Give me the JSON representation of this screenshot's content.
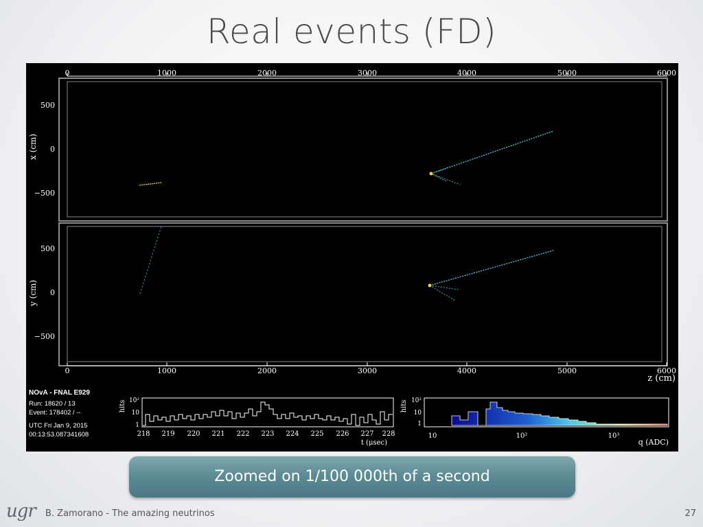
{
  "slide": {
    "title": "Real events (FD)",
    "caption": "Zoomed on 1/100 000th of a second",
    "author": "B. Zamorano - The amazing neutrinos",
    "page": "27",
    "logo": "ugr"
  },
  "event_display": {
    "z_axis_ticks": [
      "0",
      "1000",
      "2000",
      "3000",
      "4000",
      "5000",
      "6000"
    ],
    "z_axis_label": "z (cm)",
    "x_view": {
      "ylabel": "x (cm)",
      "ticks": [
        "500",
        "0",
        "−500"
      ]
    },
    "y_view": {
      "ylabel": "y (cm)",
      "ticks": [
        "500",
        "0",
        "−500"
      ]
    },
    "info": {
      "header": "NOvA - FNAL E929",
      "run": "Run:   18620 / 13",
      "event": "Event: 178402 / --",
      "utc": "UTC Fri Jan 9, 2015",
      "time": "00:13:53.087341608"
    },
    "time_hist": {
      "ylabel": "hits",
      "yticks": [
        "10²",
        "10",
        "1"
      ],
      "xticks": [
        "218",
        "219",
        "220",
        "221",
        "222",
        "223",
        "224",
        "225",
        "226",
        "227",
        "228"
      ],
      "xlabel": "t (μsec)"
    },
    "charge_hist": {
      "ylabel": "hits",
      "yticks": [
        "10²",
        "10",
        "1"
      ],
      "xticks": [
        "10",
        "10²",
        "10³"
      ],
      "xlabel": "q (ADC)"
    }
  },
  "colors": {
    "accent_caption": "#5d8c95",
    "track_cyan": "#5fc7e6",
    "track_yellow": "#e6d35c"
  }
}
